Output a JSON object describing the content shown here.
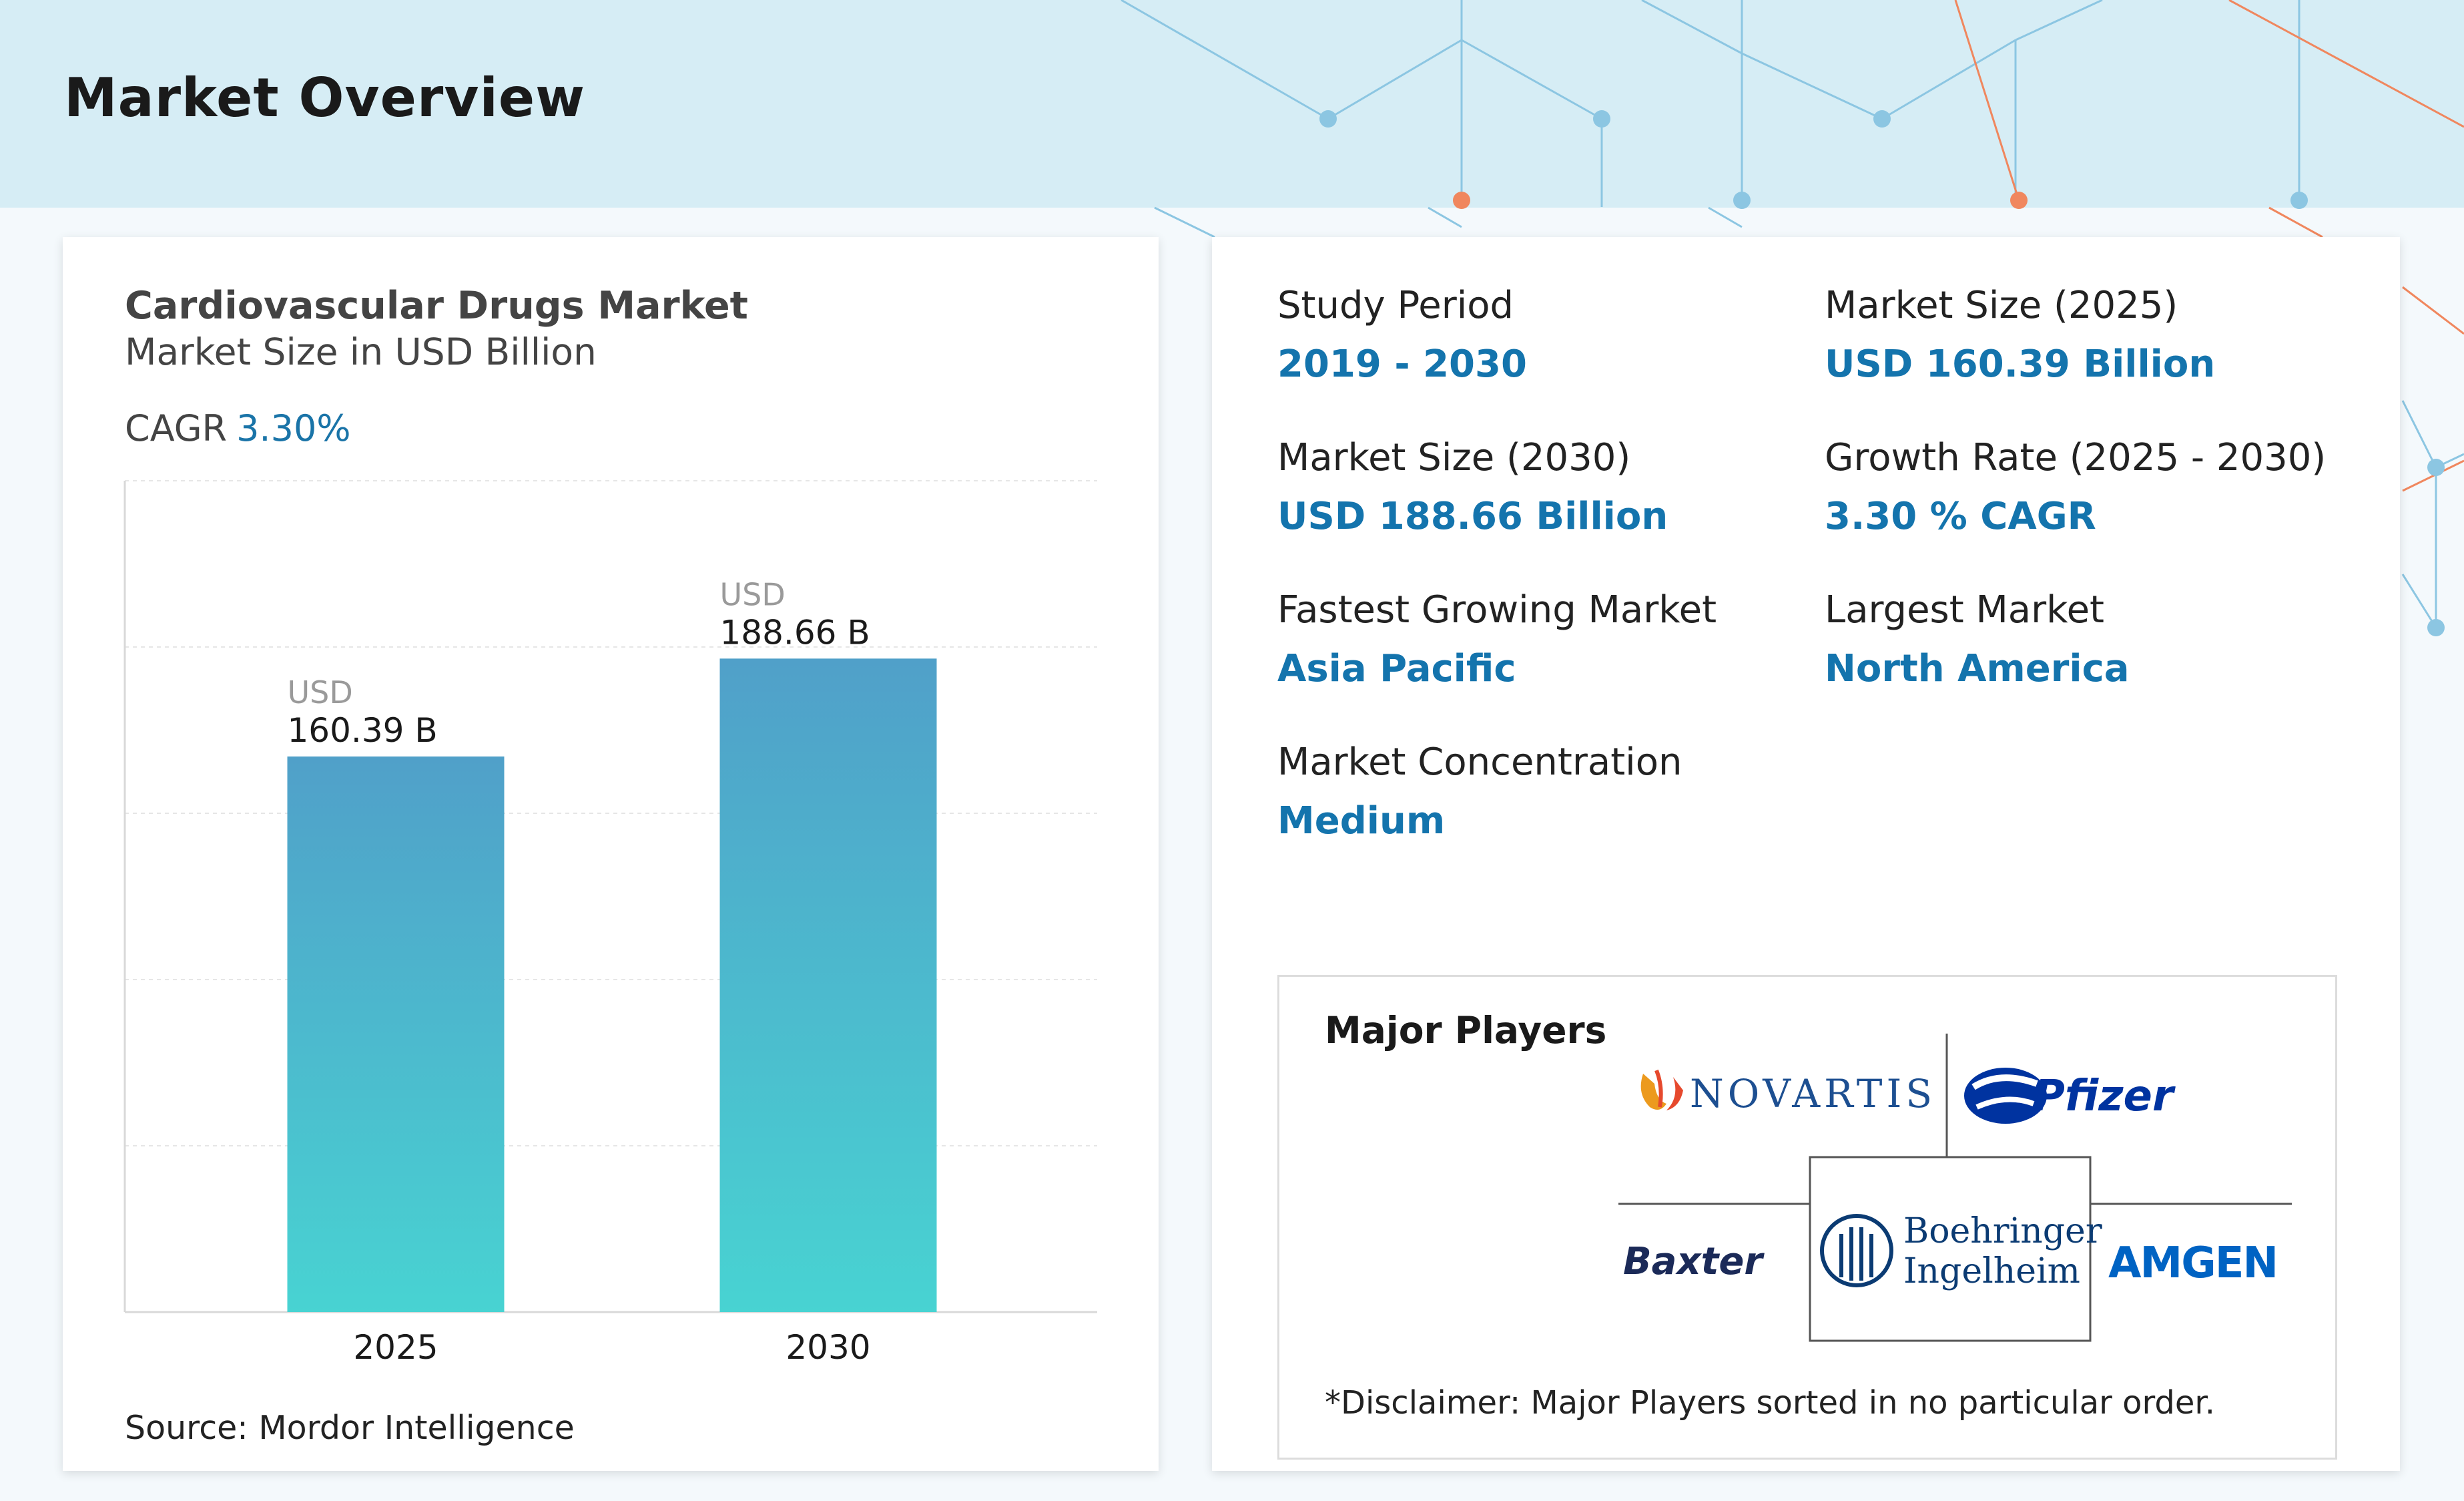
{
  "page": {
    "title": "Market Overview",
    "colors": {
      "header_band": "#d6edf5",
      "accent": "#1474ad",
      "bar_top": "#50a0c9",
      "bar_bottom": "#48d3d2"
    }
  },
  "chart_card": {
    "source": "Source: Mordor Intelligence"
  },
  "chart_data": {
    "type": "bar",
    "title": "Cardiovascular Drugs Market",
    "subtitle": "Market Size in USD Billion",
    "cagr_label": "CAGR",
    "cagr_value": "3.30%",
    "categories": [
      "2025",
      "2030"
    ],
    "values": [
      160.39,
      188.66
    ],
    "value_prefix": "USD",
    "value_labels": [
      "160.39 B",
      "188.66 B"
    ],
    "ylim": [
      0,
      240
    ],
    "grid": true,
    "xlabel": "",
    "ylabel": ""
  },
  "stats": {
    "study_period": {
      "label": "Study Period",
      "value": "2019 - 2030"
    },
    "market_size_2025": {
      "label": "Market Size (2025)",
      "value": "USD 160.39 Billion"
    },
    "market_size_2030": {
      "label": "Market Size (2030)",
      "value": "USD 188.66 Billion"
    },
    "growth_rate": {
      "label": "Growth Rate (2025 - 2030)",
      "value": "3.30 % CAGR"
    },
    "fastest_growing": {
      "label": "Fastest Growing Market",
      "value": "Asia Pacific"
    },
    "largest_market": {
      "label": "Largest Market",
      "value": "North America"
    },
    "concentration": {
      "label": "Market Concentration",
      "value": "Medium"
    }
  },
  "players": {
    "title": "Major Players",
    "logos": [
      "NOVARTIS",
      "Pfizer",
      "Baxter",
      "Boehringer",
      "Ingelheim",
      "AMGEN"
    ],
    "disclaimer": "*Disclaimer: Major Players sorted in no particular order."
  }
}
